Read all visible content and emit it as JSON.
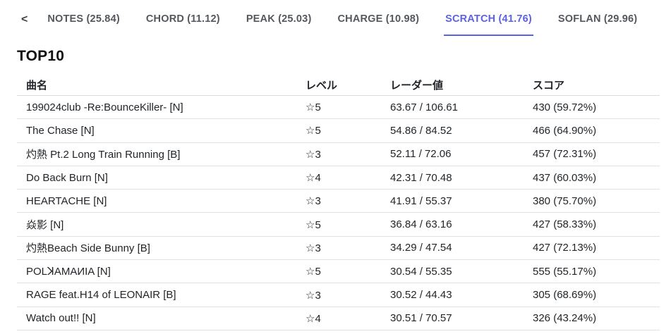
{
  "accent_color": "#5b62e3",
  "tabbar": {
    "scroll_left": "<",
    "tabs": [
      {
        "id": "notes",
        "label": "NOTES (25.84)",
        "active": false
      },
      {
        "id": "chord",
        "label": "CHORD (11.12)",
        "active": false
      },
      {
        "id": "peak",
        "label": "PEAK (25.03)",
        "active": false
      },
      {
        "id": "charge",
        "label": "CHARGE (10.98)",
        "active": false
      },
      {
        "id": "scratch",
        "label": "SCRATCH (41.76)",
        "active": true
      },
      {
        "id": "soflan",
        "label": "SOFLAN (29.96)",
        "active": false
      }
    ]
  },
  "section_title": "TOP10",
  "table": {
    "columns": [
      "曲名",
      "レベル",
      "レーダー値",
      "スコア"
    ],
    "rows": [
      {
        "title": "199024club -Re:BounceKiller- [N]",
        "level": "☆5",
        "radar": "63.67 / 106.61",
        "score": "430 (59.72%)"
      },
      {
        "title": "The Chase [N]",
        "level": "☆5",
        "radar": "54.86 / 84.52",
        "score": "466 (64.90%)"
      },
      {
        "title": "灼熱 Pt.2 Long Train Running [B]",
        "level": "☆3",
        "radar": "52.11 / 72.06",
        "score": "457 (72.31%)"
      },
      {
        "title": "Do Back Burn [N]",
        "level": "☆4",
        "radar": "42.31 / 70.48",
        "score": "437 (60.03%)"
      },
      {
        "title": "HEARTACHE [N]",
        "level": "☆3",
        "radar": "41.91 / 55.37",
        "score": "380 (75.70%)"
      },
      {
        "title": "焱影 [N]",
        "level": "☆5",
        "radar": "36.84 / 63.16",
        "score": "427 (58.33%)"
      },
      {
        "title": "灼熱Beach Side Bunny [B]",
        "level": "☆3",
        "radar": "34.29 / 47.54",
        "score": "427 (72.13%)"
      },
      {
        "title": "POLꓘAMAИIA [N]",
        "level": "☆5",
        "radar": "30.54 / 55.35",
        "score": "555 (55.17%)"
      },
      {
        "title": "RAGE feat.H14 of LEONAIR [B]",
        "level": "☆3",
        "radar": "30.52 / 44.43",
        "score": "305 (68.69%)"
      },
      {
        "title": "Watch out!! [N]",
        "level": "☆4",
        "radar": "30.51 / 70.57",
        "score": "326 (43.24%)"
      }
    ]
  }
}
